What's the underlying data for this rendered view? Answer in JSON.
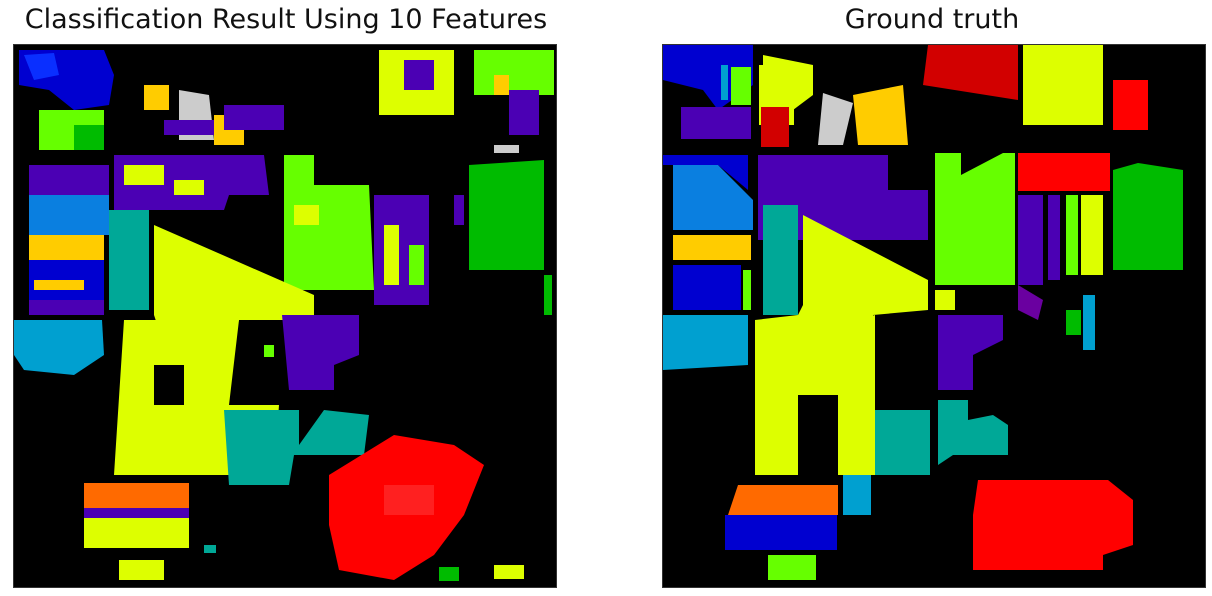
{
  "figure": {
    "left_title": "Classification Result Using 10 Features",
    "right_title": "Ground truth"
  },
  "palette": {
    "background": "#000000",
    "class_blue": "#0000d0",
    "class_sky": "#0a7fe0",
    "class_cyan": "#00a0d0",
    "class_teal": "#00a897",
    "class_green": "#00bb00",
    "class_lime": "#66ff00",
    "class_yellow": "#ddff00",
    "class_gold": "#ffcc00",
    "class_orange": "#ff6a00",
    "class_red": "#ff0000",
    "class_darkred": "#d20000",
    "class_indigo": "#4b00b4",
    "class_purple": "#6a00a0",
    "class_gray": "#cccccc"
  }
}
